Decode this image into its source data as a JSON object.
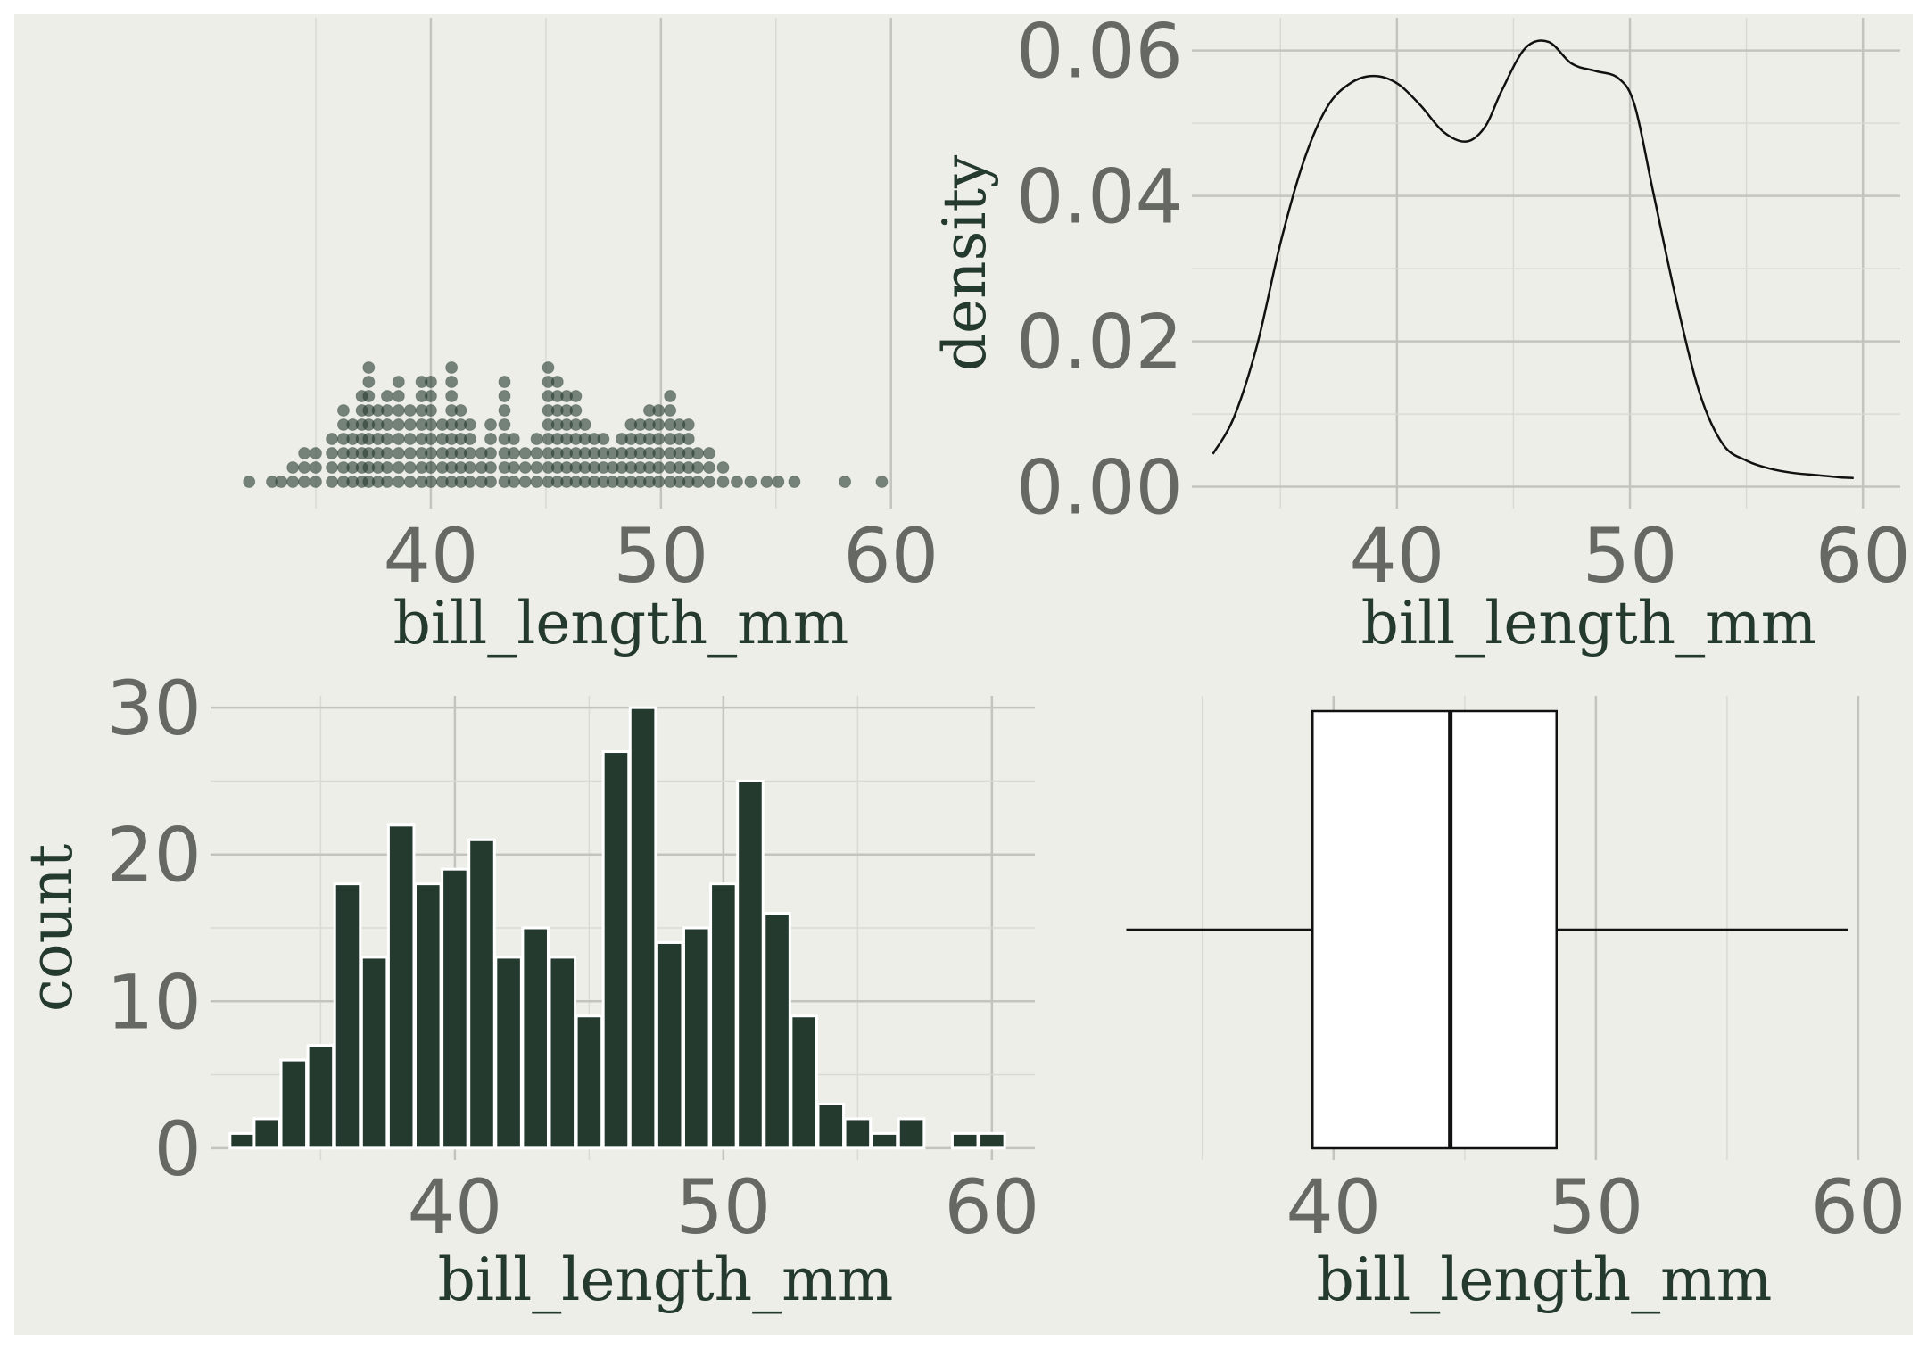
{
  "theme": {
    "panel_bg": "#eeeee9",
    "grid_major": "#c4c4bf",
    "grid_minor": "#dadad5",
    "tick_color": "#666863",
    "label_color": "#243a2f",
    "bar_fill": "#243a2f",
    "point_fill": "#243a2f"
  },
  "chart_data": [
    {
      "id": "dotplot",
      "type": "scatter",
      "xlabel": "bill_length_mm",
      "ylabel": "",
      "xlim": [
        31.2,
        61.6
      ],
      "xticks": [
        40,
        50,
        60
      ],
      "grid": true,
      "columns": [
        [
          32.1,
          1
        ],
        [
          33.1,
          1
        ],
        [
          33.5,
          1
        ],
        [
          34.0,
          2
        ],
        [
          34.5,
          3
        ],
        [
          35.0,
          3
        ],
        [
          35.7,
          4
        ],
        [
          36.2,
          6
        ],
        [
          36.6,
          5
        ],
        [
          37.0,
          7
        ],
        [
          37.3,
          9
        ],
        [
          37.7,
          6
        ],
        [
          38.1,
          7
        ],
        [
          38.6,
          8
        ],
        [
          39.1,
          6
        ],
        [
          39.6,
          8
        ],
        [
          40.0,
          8
        ],
        [
          40.5,
          5
        ],
        [
          40.9,
          9
        ],
        [
          41.3,
          6
        ],
        [
          41.7,
          5
        ],
        [
          42.2,
          3
        ],
        [
          42.6,
          5
        ],
        [
          43.2,
          8
        ],
        [
          43.6,
          4
        ],
        [
          44.1,
          3
        ],
        [
          44.6,
          4
        ],
        [
          45.1,
          9
        ],
        [
          45.5,
          8
        ],
        [
          45.9,
          7
        ],
        [
          46.3,
          7
        ],
        [
          46.7,
          5
        ],
        [
          47.1,
          4
        ],
        [
          47.5,
          4
        ],
        [
          47.9,
          3
        ],
        [
          48.3,
          4
        ],
        [
          48.7,
          5
        ],
        [
          49.1,
          5
        ],
        [
          49.5,
          6
        ],
        [
          49.9,
          6
        ],
        [
          50.4,
          7
        ],
        [
          50.8,
          5
        ],
        [
          51.2,
          5
        ],
        [
          51.6,
          3
        ],
        [
          52.1,
          3
        ],
        [
          52.7,
          2
        ],
        [
          53.3,
          1
        ],
        [
          53.9,
          1
        ],
        [
          54.6,
          1
        ],
        [
          55.1,
          1
        ],
        [
          55.8,
          1
        ],
        [
          58.0,
          1
        ],
        [
          59.6,
          1
        ]
      ]
    },
    {
      "id": "density",
      "type": "line",
      "xlabel": "bill_length_mm",
      "ylabel": "density",
      "xlim": [
        31.2,
        61.6
      ],
      "ylim": [
        -0.003,
        0.0645
      ],
      "xticks": [
        40,
        50,
        60
      ],
      "yticks": [
        0.0,
        0.02,
        0.04,
        0.06
      ],
      "ytick_labels": [
        "0.00",
        "0.02",
        "0.04",
        "0.06"
      ],
      "grid": true,
      "x": [
        32.1,
        33.0,
        34.0,
        35.0,
        36.0,
        37.0,
        38.0,
        39.0,
        40.0,
        41.0,
        42.0,
        43.0,
        43.8,
        44.5,
        45.5,
        46.5,
        47.5,
        48.5,
        49.5,
        50.2,
        51.0,
        52.0,
        53.0,
        54.0,
        55.0,
        56.0,
        57.0,
        58.0,
        59.0,
        59.6
      ],
      "y": [
        0.0045,
        0.0095,
        0.0195,
        0.0335,
        0.0448,
        0.0522,
        0.0555,
        0.0565,
        0.0555,
        0.0525,
        0.0488,
        0.0475,
        0.0496,
        0.0545,
        0.0603,
        0.0612,
        0.0582,
        0.0572,
        0.0562,
        0.0525,
        0.0405,
        0.0255,
        0.0128,
        0.0058,
        0.0036,
        0.0025,
        0.0019,
        0.0016,
        0.0013,
        0.0012
      ]
    },
    {
      "id": "histogram",
      "type": "bar",
      "xlabel": "bill_length_mm",
      "ylabel": "count",
      "xlim": [
        30.9,
        61.6
      ],
      "ylim": [
        -0.8,
        30.8
      ],
      "xticks": [
        40,
        50,
        60
      ],
      "yticks": [
        0,
        10,
        20,
        30
      ],
      "grid": true,
      "x": [
        32.1,
        33.0,
        34.0,
        35.0,
        36.0,
        37.0,
        38.0,
        39.0,
        40.0,
        41.0,
        42.0,
        43.0,
        44.0,
        45.0,
        46.0,
        47.0,
        48.0,
        49.0,
        50.0,
        51.0,
        52.0,
        53.0,
        54.0,
        55.0,
        56.0,
        57.0,
        58.0,
        59.0,
        60.0
      ],
      "values": [
        1,
        2,
        6,
        7,
        18,
        13,
        22,
        18,
        19,
        21,
        13,
        15,
        13,
        9,
        27,
        30,
        14,
        15,
        18,
        25,
        16,
        9,
        3,
        2,
        1,
        2,
        0,
        1,
        1
      ]
    },
    {
      "id": "boxplot",
      "type": "box",
      "xlabel": "bill_length_mm",
      "ylabel": "",
      "xlim": [
        31.2,
        61.6
      ],
      "xticks": [
        40,
        50,
        60
      ],
      "grid": true,
      "whisker_low": 32.1,
      "q1": 39.2,
      "median": 44.45,
      "q3": 48.5,
      "whisker_high": 59.6
    }
  ]
}
